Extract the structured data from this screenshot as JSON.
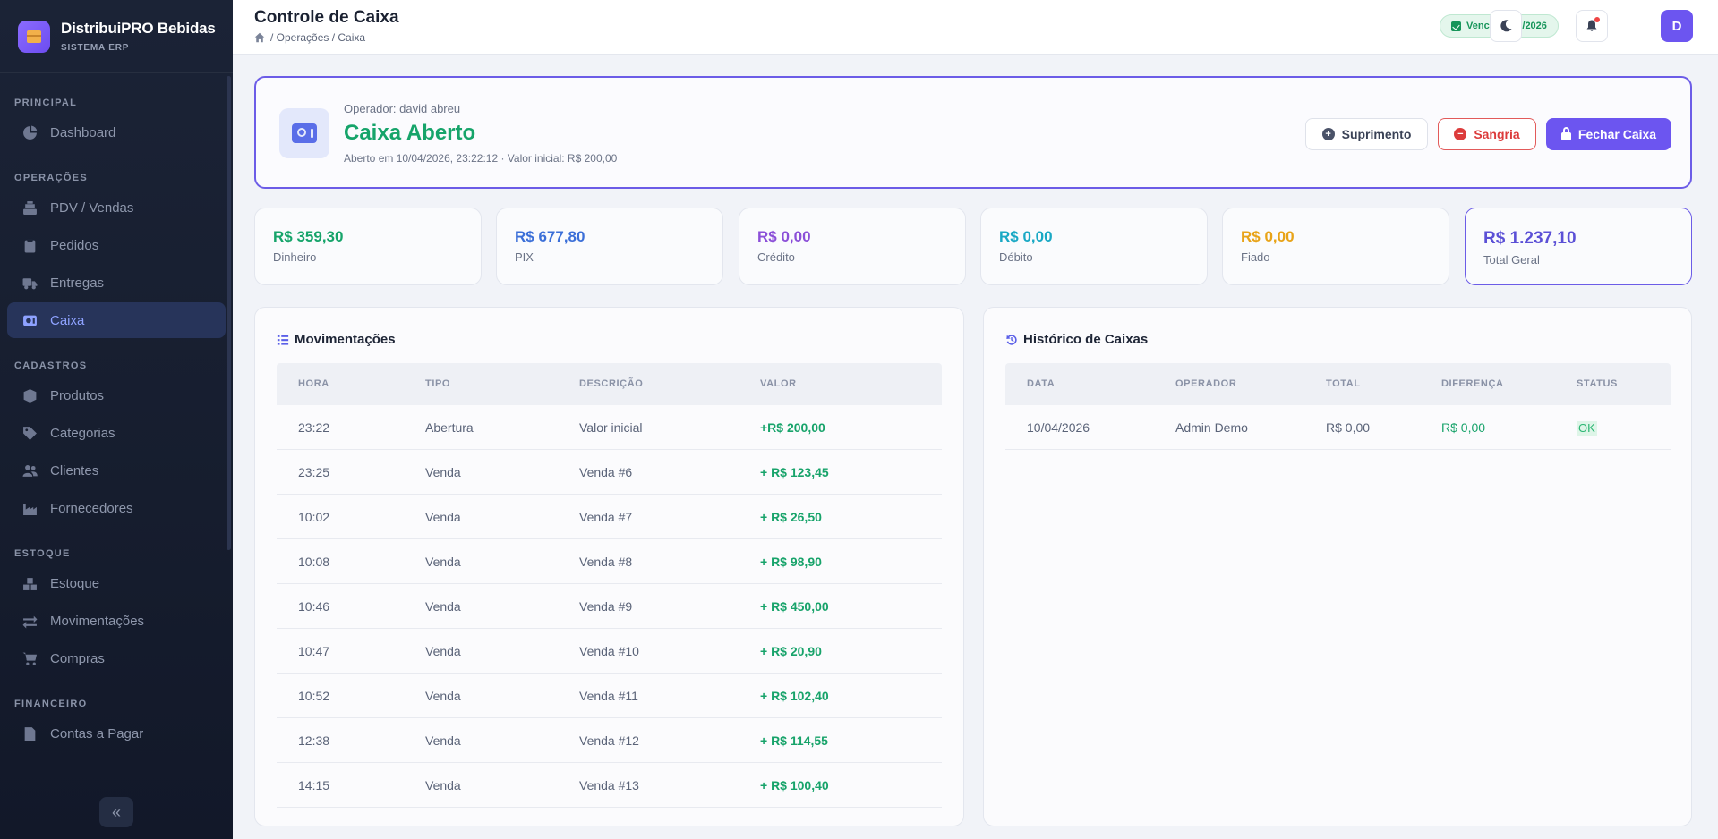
{
  "brand": {
    "name": "DistribuiPRO Bebidas",
    "subtitle": "SISTEMA ERP"
  },
  "sidebar": {
    "sections": [
      {
        "title": "PRINCIPAL",
        "items": [
          {
            "label": "Dashboard",
            "icon": "chart-pie-icon"
          }
        ]
      },
      {
        "title": "OPERAÇÕES",
        "items": [
          {
            "label": "PDV / Vendas",
            "icon": "cash-register-icon"
          },
          {
            "label": "Pedidos",
            "icon": "clipboard-icon"
          },
          {
            "label": "Entregas",
            "icon": "truck-icon"
          },
          {
            "label": "Caixa",
            "icon": "cash-box-icon",
            "active": true
          }
        ]
      },
      {
        "title": "CADASTROS",
        "items": [
          {
            "label": "Produtos",
            "icon": "box-icon"
          },
          {
            "label": "Categorias",
            "icon": "tags-icon"
          },
          {
            "label": "Clientes",
            "icon": "users-icon"
          },
          {
            "label": "Fornecedores",
            "icon": "industry-icon"
          }
        ]
      },
      {
        "title": "ESTOQUE",
        "items": [
          {
            "label": "Estoque",
            "icon": "boxes-icon"
          },
          {
            "label": "Movimentações",
            "icon": "exchange-icon"
          },
          {
            "label": "Compras",
            "icon": "cart-icon"
          }
        ]
      },
      {
        "title": "FINANCEIRO",
        "items": [
          {
            "label": "Contas a Pagar",
            "icon": "file-invoice-icon"
          }
        ]
      }
    ],
    "collapse_label": "«"
  },
  "header": {
    "title": "Controle de Caixa",
    "breadcrumb": "/ Operações / Caixa",
    "expiry_badge": "Vence 21/05/2026",
    "avatar_initial": "D"
  },
  "caixa": {
    "operator": "Operador: david abreu",
    "status": "Caixa Aberto",
    "opened_info": "Aberto em 10/04/2026, 23:22:12 · Valor inicial: R$ 200,00",
    "actions": {
      "suprimento": "Suprimento",
      "sangria": "Sangria",
      "fechar": "Fechar Caixa"
    }
  },
  "summary": [
    {
      "value": "R$ 359,30",
      "label": "Dinheiro",
      "color": "#16a46a"
    },
    {
      "value": "R$ 677,80",
      "label": "PIX",
      "color": "#3b6fd8"
    },
    {
      "value": "R$ 0,00",
      "label": "Crédito",
      "color": "#8b4fd8"
    },
    {
      "value": "R$ 0,00",
      "label": "Débito",
      "color": "#19a8c4"
    },
    {
      "value": "R$ 0,00",
      "label": "Fiado",
      "color": "#e8a317"
    },
    {
      "value": "R$ 1.237,10",
      "label": "Total Geral",
      "color": "#5b50d6"
    }
  ],
  "movimentacoes": {
    "title": "Movimentações",
    "columns": [
      "HORA",
      "TIPO",
      "DESCRIÇÃO",
      "VALOR"
    ],
    "rows": [
      {
        "hora": "23:22",
        "tipo": "Abertura",
        "descricao": "Valor inicial",
        "valor": "+R$ 200,00"
      },
      {
        "hora": "23:25",
        "tipo": "Venda",
        "descricao": "Venda #6",
        "valor": "+ R$ 123,45"
      },
      {
        "hora": "10:02",
        "tipo": "Venda",
        "descricao": "Venda #7",
        "valor": "+ R$ 26,50"
      },
      {
        "hora": "10:08",
        "tipo": "Venda",
        "descricao": "Venda #8",
        "valor": "+ R$ 98,90"
      },
      {
        "hora": "10:46",
        "tipo": "Venda",
        "descricao": "Venda #9",
        "valor": "+ R$ 450,00"
      },
      {
        "hora": "10:47",
        "tipo": "Venda",
        "descricao": "Venda #10",
        "valor": "+ R$ 20,90"
      },
      {
        "hora": "10:52",
        "tipo": "Venda",
        "descricao": "Venda #11",
        "valor": "+ R$ 102,40"
      },
      {
        "hora": "12:38",
        "tipo": "Venda",
        "descricao": "Venda #12",
        "valor": "+ R$ 114,55"
      },
      {
        "hora": "14:15",
        "tipo": "Venda",
        "descricao": "Venda #13",
        "valor": "+ R$ 100,40"
      }
    ]
  },
  "historico": {
    "title": "Histórico de Caixas",
    "columns": [
      "DATA",
      "OPERADOR",
      "TOTAL",
      "DIFERENÇA",
      "STATUS"
    ],
    "rows": [
      {
        "data": "10/04/2026",
        "operador": "Admin Demo",
        "total": "R$ 0,00",
        "diferenca": "R$ 0,00",
        "status": "OK"
      }
    ]
  }
}
